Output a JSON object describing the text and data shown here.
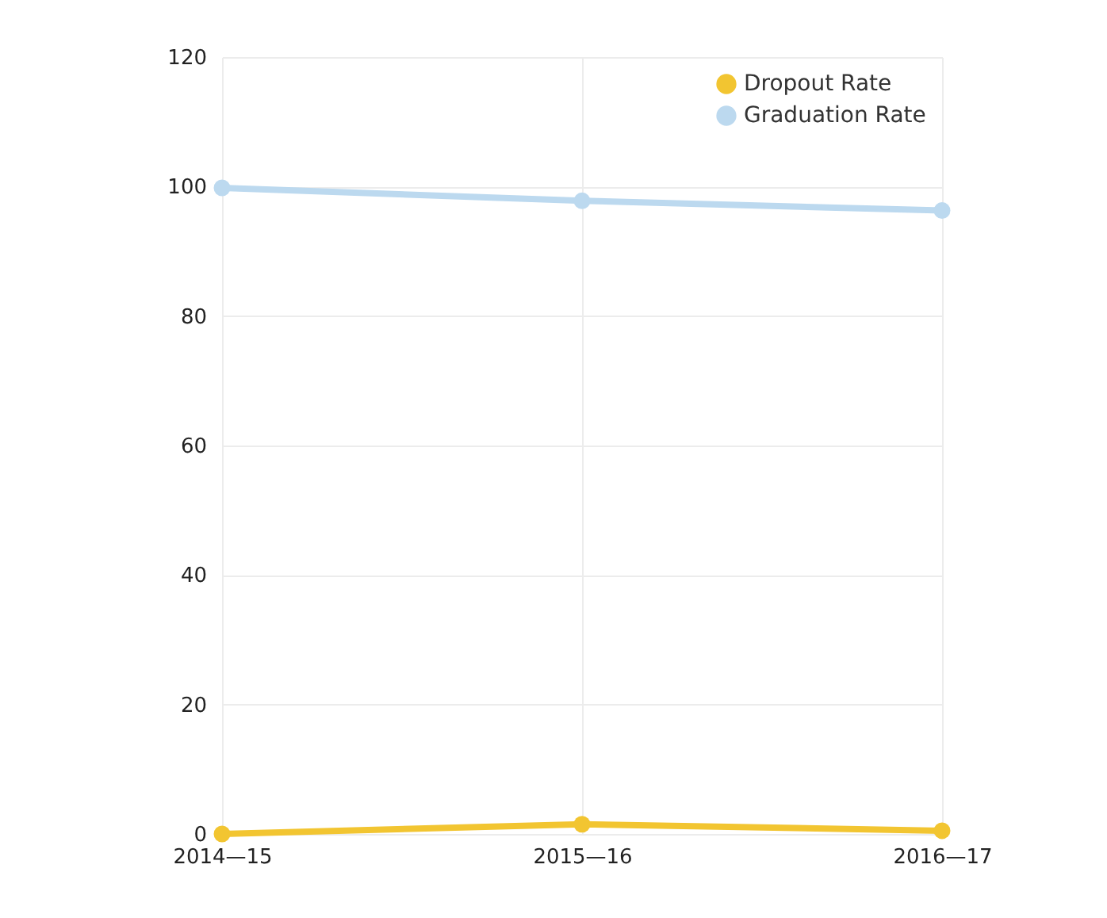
{
  "chart_data": {
    "type": "line",
    "categories": [
      "2014—15",
      "2015—16",
      "2016—17"
    ],
    "series": [
      {
        "name": "Dropout Rate",
        "color": "#f2c531",
        "values": [
          0,
          1.5,
          0.5
        ]
      },
      {
        "name": "Graduation Rate",
        "color": "#bcd9ef",
        "values": [
          99.8,
          97.8,
          96.3
        ]
      }
    ],
    "ylim": [
      0,
      120
    ],
    "yticks": [
      0,
      20,
      40,
      60,
      80,
      100,
      120
    ],
    "grid": true,
    "legend": "top right",
    "marker": "circle",
    "line_style": "solid"
  }
}
